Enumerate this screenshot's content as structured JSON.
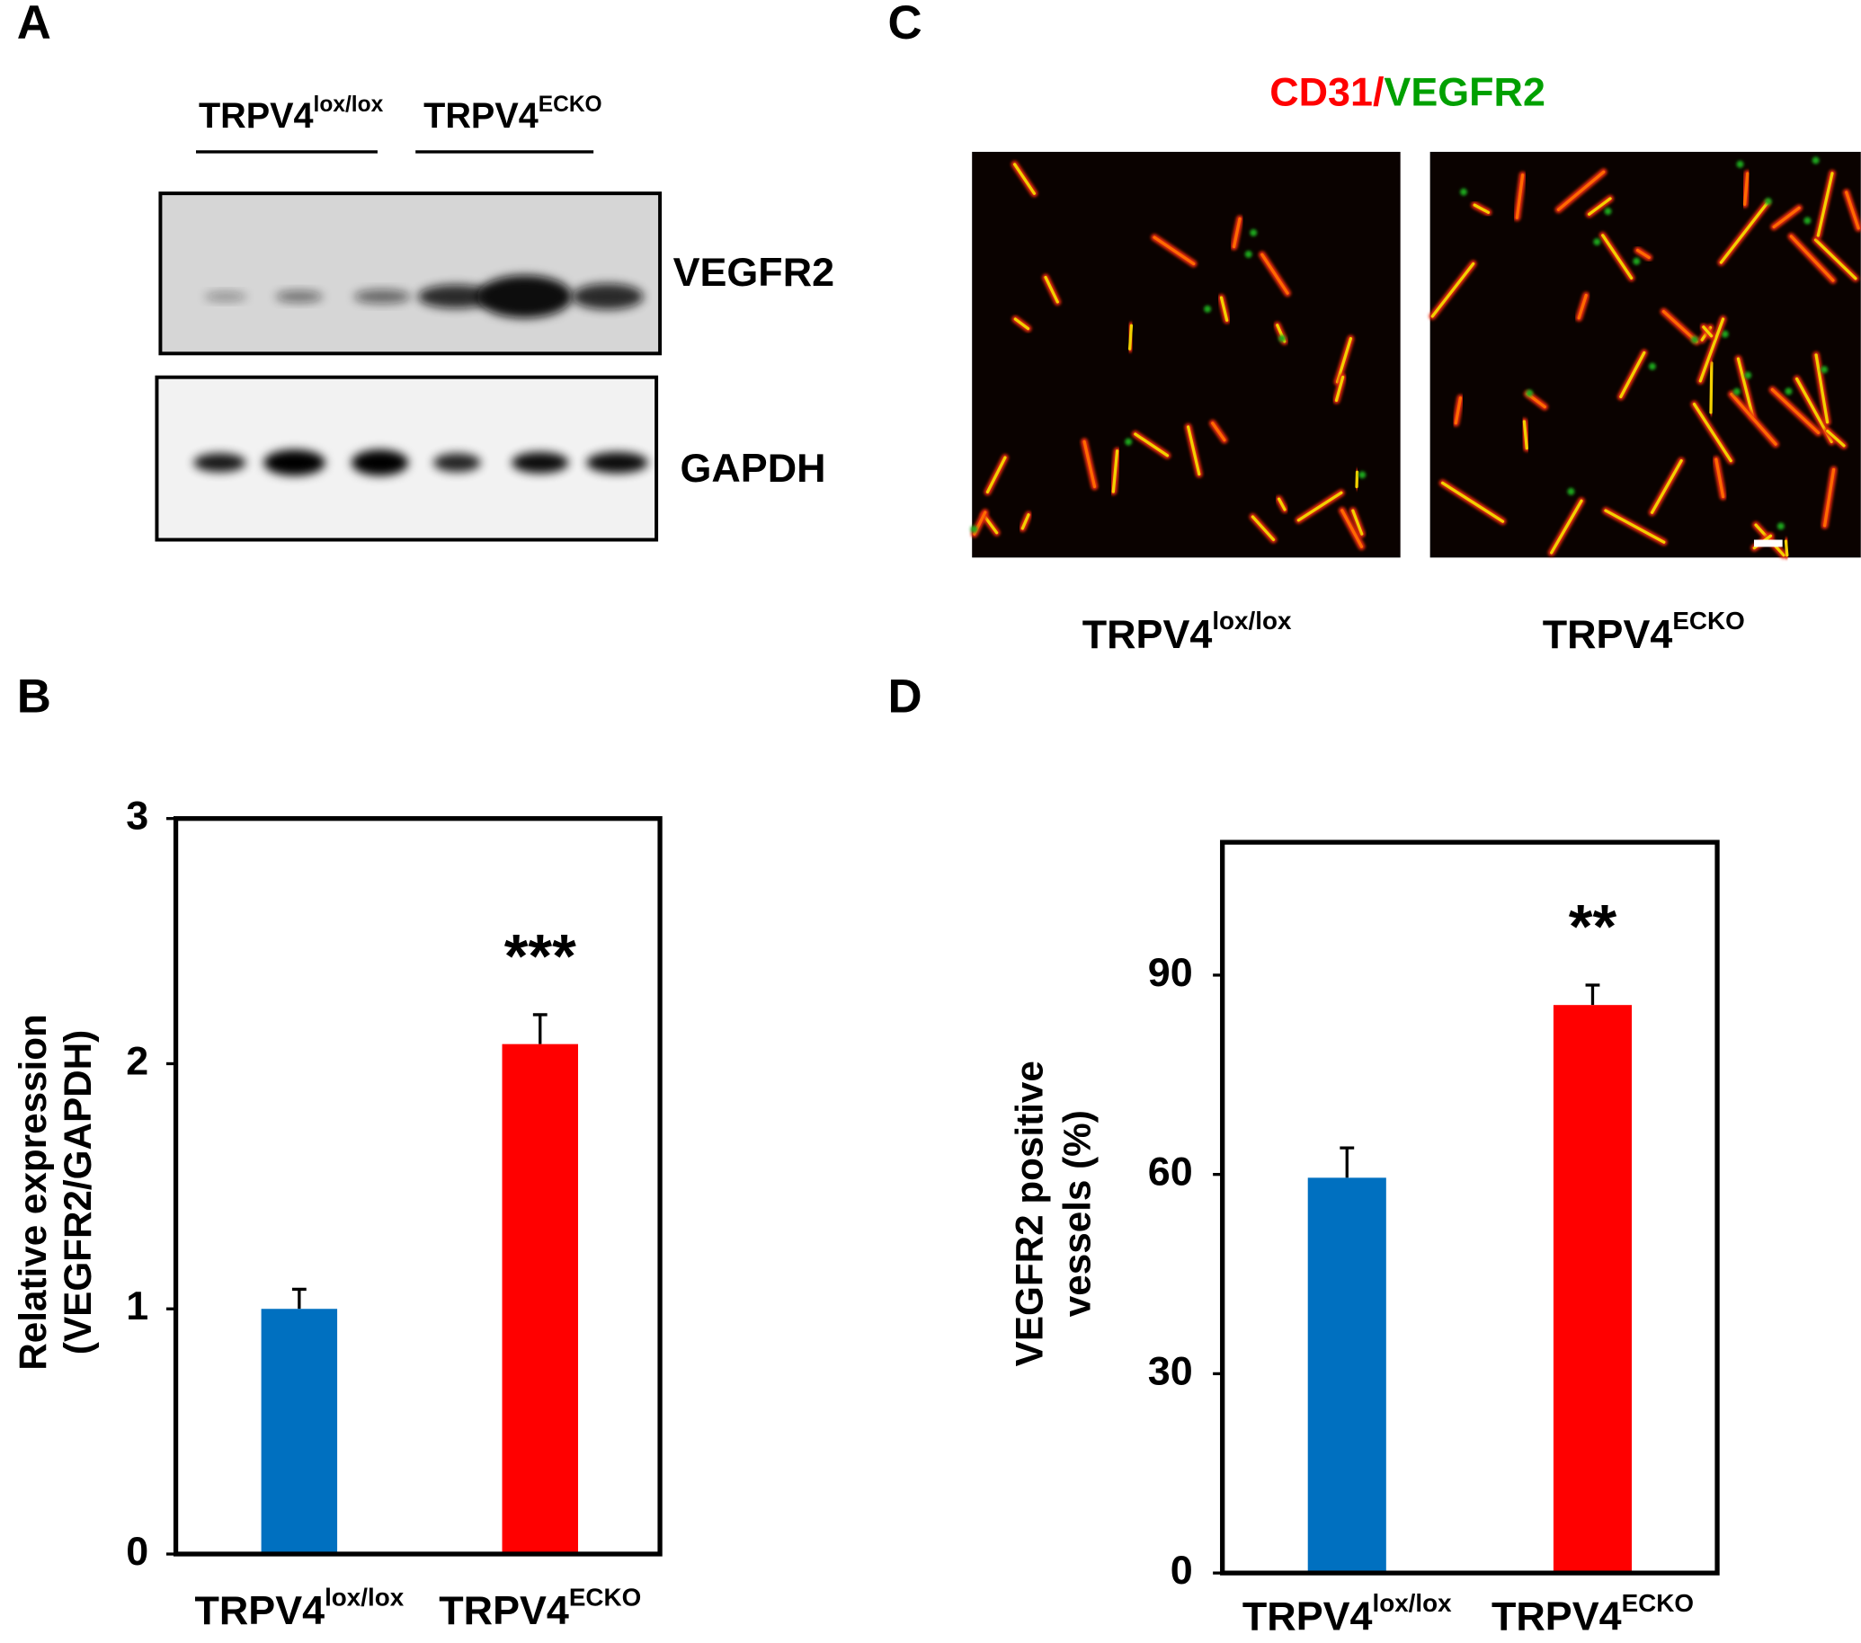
{
  "panel_labels": [
    "A",
    "B",
    "C",
    "D"
  ],
  "blot": {
    "groups": [
      "TRPV4",
      "TRPV4"
    ],
    "group_superscripts": [
      "lox/lox",
      "ECKO"
    ],
    "rows": [
      "VEGFR2",
      "GAPDH"
    ]
  },
  "staining": {
    "title_parts": [
      {
        "text": "CD31/",
        "color": "#ff0000"
      },
      {
        "text": "VEGFR2",
        "color": "#00a000"
      }
    ],
    "groups": [
      "TRPV4",
      "TRPV4"
    ],
    "group_superscripts": [
      "lox/lox",
      "ECKO"
    ]
  },
  "chart_data": [
    {
      "type": "bar",
      "y_label": [
        "Relative expression",
        "(VEGFR2/GAPDH)"
      ],
      "categories": [
        "TRPV4",
        "TRPV4"
      ],
      "category_superscripts": [
        "lox/lox",
        "ECKO"
      ],
      "values": [
        1.0,
        2.08
      ],
      "errors": [
        0.08,
        0.12
      ],
      "colors": [
        "#0070c0",
        "#ff0000"
      ],
      "annotation": "***",
      "ylim": [
        0,
        3
      ],
      "yticks": [
        0,
        1,
        2,
        3
      ]
    },
    {
      "type": "bar",
      "y_label": [
        "VEGFR2 positive",
        "vessels  (%)"
      ],
      "categories": [
        "TRPV4",
        "TRPV4"
      ],
      "category_superscripts": [
        "lox/lox",
        "ECKO"
      ],
      "values": [
        59.5,
        85.5
      ],
      "errors": [
        4.5,
        3
      ],
      "colors": [
        "#0070c0",
        "#ff0000"
      ],
      "annotation": "**",
      "ylim": [
        0,
        110
      ],
      "yticks": [
        0,
        30,
        60,
        90
      ]
    }
  ]
}
